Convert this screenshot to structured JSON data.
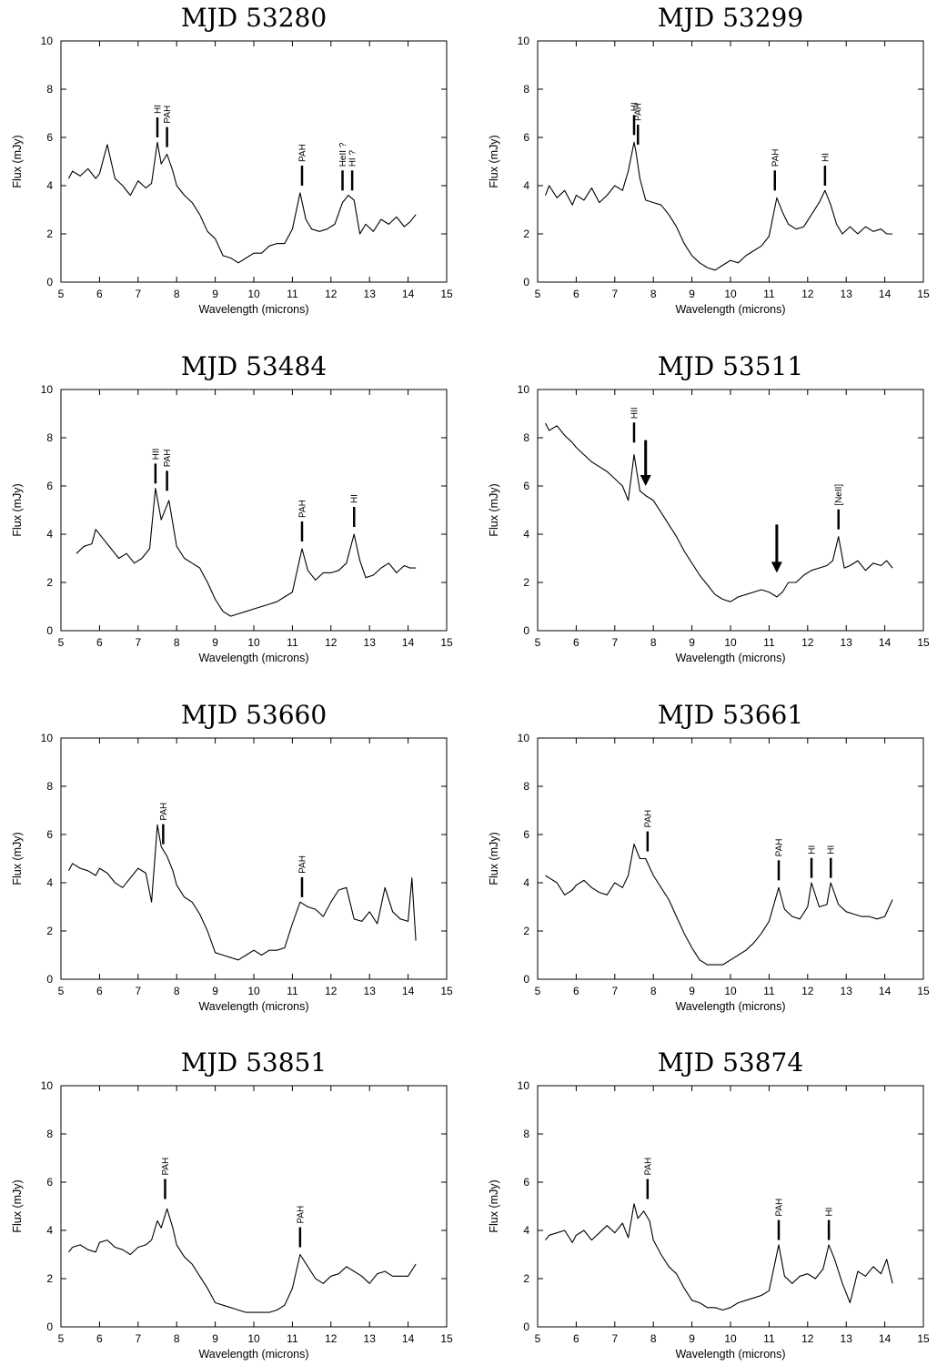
{
  "figure": {
    "xlabel": "Wavelength (microns)",
    "ylabel": "Flux (mJy)",
    "xlim": [
      5,
      15
    ],
    "ylim": [
      0,
      10
    ],
    "xticks": [
      5,
      6,
      7,
      8,
      9,
      10,
      11,
      12,
      13,
      14,
      15
    ],
    "yticks": [
      0,
      2,
      4,
      6,
      8,
      10
    ],
    "line_color": "#000000"
  },
  "chart_data": [
    {
      "type": "line",
      "title": "MJD 53280",
      "xlabel": "Wavelength (microns)",
      "ylabel": "Flux (mJy)",
      "xlim": [
        5,
        15
      ],
      "ylim": [
        0,
        10
      ],
      "series": [
        {
          "x": [
            5.2,
            5.3,
            5.5,
            5.7,
            5.9,
            6.0,
            6.2,
            6.4,
            6.6,
            6.8,
            7.0,
            7.2,
            7.35,
            7.5,
            7.6,
            7.75,
            7.9,
            8.0,
            8.2,
            8.4,
            8.6,
            8.8,
            9.0,
            9.2,
            9.4,
            9.6,
            9.8,
            10.0,
            10.2,
            10.4,
            10.6,
            10.8,
            11.0,
            11.2,
            11.35,
            11.5,
            11.7,
            11.9,
            12.1,
            12.3,
            12.45,
            12.6,
            12.75,
            12.9,
            13.1,
            13.3,
            13.5,
            13.7,
            13.9,
            14.05,
            14.2
          ],
          "y": [
            4.3,
            4.6,
            4.4,
            4.7,
            4.3,
            4.5,
            5.7,
            4.3,
            4.0,
            3.6,
            4.2,
            3.9,
            4.1,
            5.8,
            4.9,
            5.3,
            4.6,
            4.0,
            3.6,
            3.3,
            2.8,
            2.1,
            1.8,
            1.1,
            1.0,
            0.8,
            1.0,
            1.2,
            1.2,
            1.5,
            1.6,
            1.6,
            2.2,
            3.7,
            2.6,
            2.2,
            2.1,
            2.2,
            2.4,
            3.3,
            3.6,
            3.4,
            2.0,
            2.4,
            2.1,
            2.6,
            2.4,
            2.7,
            2.3,
            2.5,
            2.8
          ]
        }
      ],
      "annotations": [
        {
          "label": "HI",
          "x": 7.5,
          "y": 6.0
        },
        {
          "label": "PAH",
          "x": 7.75,
          "y": 5.6
        },
        {
          "label": "PAH",
          "x": 11.25,
          "y": 4.0
        },
        {
          "label": "HeII ?",
          "x": 12.3,
          "y": 3.8
        },
        {
          "label": "HI ?",
          "x": 12.55,
          "y": 3.8
        }
      ]
    },
    {
      "type": "line",
      "title": "MJD 53299",
      "xlabel": "Wavelength (microns)",
      "ylabel": "Flux (mJy)",
      "xlim": [
        5,
        15
      ],
      "ylim": [
        0,
        10
      ],
      "series": [
        {
          "x": [
            5.2,
            5.3,
            5.5,
            5.7,
            5.9,
            6.0,
            6.2,
            6.4,
            6.6,
            6.8,
            7.0,
            7.2,
            7.35,
            7.5,
            7.55,
            7.65,
            7.8,
            8.0,
            8.2,
            8.4,
            8.6,
            8.8,
            9.0,
            9.2,
            9.4,
            9.6,
            9.8,
            10.0,
            10.2,
            10.4,
            10.6,
            10.8,
            11.0,
            11.2,
            11.35,
            11.5,
            11.7,
            11.9,
            12.1,
            12.3,
            12.45,
            12.6,
            12.75,
            12.9,
            13.1,
            13.3,
            13.5,
            13.7,
            13.9,
            14.05,
            14.2
          ],
          "y": [
            3.6,
            4.0,
            3.5,
            3.8,
            3.2,
            3.6,
            3.4,
            3.9,
            3.3,
            3.6,
            4.0,
            3.8,
            4.6,
            5.8,
            5.4,
            4.3,
            3.4,
            3.3,
            3.2,
            2.8,
            2.3,
            1.6,
            1.1,
            0.8,
            0.6,
            0.5,
            0.7,
            0.9,
            0.8,
            1.1,
            1.3,
            1.5,
            1.9,
            3.5,
            2.9,
            2.4,
            2.2,
            2.3,
            2.8,
            3.3,
            3.8,
            3.2,
            2.4,
            2.0,
            2.3,
            2.0,
            2.3,
            2.1,
            2.2,
            2.0,
            2.0
          ]
        }
      ],
      "annotations": [
        {
          "label": "HI",
          "x": 7.5,
          "y": 6.1
        },
        {
          "label": "PAH",
          "x": 7.6,
          "y": 5.7
        },
        {
          "label": "PAH",
          "x": 11.15,
          "y": 3.8
        },
        {
          "label": "HI",
          "x": 12.45,
          "y": 4.0
        }
      ]
    },
    {
      "type": "line",
      "title": "MJD 53484",
      "xlabel": "Wavelength (microns)",
      "ylabel": "Flux (mJy)",
      "xlim": [
        5,
        15
      ],
      "ylim": [
        0,
        10
      ],
      "series": [
        {
          "x": [
            5.4,
            5.6,
            5.8,
            5.9,
            6.1,
            6.3,
            6.5,
            6.7,
            6.9,
            7.1,
            7.3,
            7.45,
            7.6,
            7.8,
            8.0,
            8.2,
            8.4,
            8.6,
            8.8,
            9.0,
            9.2,
            9.4,
            9.6,
            9.8,
            10.0,
            10.2,
            10.4,
            10.6,
            10.8,
            11.0,
            11.25,
            11.4,
            11.6,
            11.8,
            12.0,
            12.2,
            12.4,
            12.6,
            12.75,
            12.9,
            13.1,
            13.3,
            13.5,
            13.7,
            13.9,
            14.05,
            14.2
          ],
          "y": [
            3.2,
            3.5,
            3.6,
            4.2,
            3.8,
            3.4,
            3.0,
            3.2,
            2.8,
            3.0,
            3.4,
            5.9,
            4.6,
            5.4,
            3.5,
            3.0,
            2.8,
            2.6,
            2.0,
            1.3,
            0.8,
            0.6,
            0.7,
            0.8,
            0.9,
            1.0,
            1.1,
            1.2,
            1.4,
            1.6,
            3.4,
            2.5,
            2.1,
            2.4,
            2.4,
            2.5,
            2.8,
            4.0,
            2.9,
            2.2,
            2.3,
            2.6,
            2.8,
            2.4,
            2.7,
            2.6,
            2.6
          ]
        }
      ],
      "annotations": [
        {
          "label": "HII",
          "x": 7.45,
          "y": 6.1
        },
        {
          "label": "PAH",
          "x": 7.75,
          "y": 5.8
        },
        {
          "label": "PAH",
          "x": 11.25,
          "y": 3.7
        },
        {
          "label": "HI",
          "x": 12.6,
          "y": 4.3
        }
      ]
    },
    {
      "type": "line",
      "title": "MJD 53511",
      "xlabel": "Wavelength (microns)",
      "ylabel": "Flux (mJy)",
      "xlim": [
        5,
        15
      ],
      "ylim": [
        0,
        10
      ],
      "series": [
        {
          "x": [
            5.2,
            5.3,
            5.5,
            5.7,
            5.9,
            6.0,
            6.2,
            6.4,
            6.6,
            6.8,
            7.0,
            7.2,
            7.35,
            7.5,
            7.65,
            7.8,
            8.0,
            8.2,
            8.4,
            8.6,
            8.8,
            9.0,
            9.2,
            9.4,
            9.6,
            9.8,
            10.0,
            10.2,
            10.4,
            10.6,
            10.8,
            11.0,
            11.2,
            11.35,
            11.5,
            11.7,
            11.9,
            12.1,
            12.3,
            12.5,
            12.65,
            12.8,
            12.95,
            13.1,
            13.3,
            13.5,
            13.7,
            13.9,
            14.05,
            14.2
          ],
          "y": [
            8.6,
            8.3,
            8.5,
            8.1,
            7.8,
            7.6,
            7.3,
            7.0,
            6.8,
            6.6,
            6.3,
            6.0,
            5.4,
            7.3,
            5.8,
            5.6,
            5.4,
            4.9,
            4.4,
            3.9,
            3.3,
            2.8,
            2.3,
            1.9,
            1.5,
            1.3,
            1.2,
            1.4,
            1.5,
            1.6,
            1.7,
            1.6,
            1.4,
            1.6,
            2.0,
            2.0,
            2.3,
            2.5,
            2.6,
            2.7,
            2.9,
            3.9,
            2.6,
            2.7,
            2.9,
            2.5,
            2.8,
            2.7,
            2.9,
            2.6
          ]
        }
      ],
      "annotations": [
        {
          "label": "HII",
          "x": 7.5,
          "y": 7.8
        },
        {
          "label": "[NeII]",
          "x": 12.8,
          "y": 4.2
        }
      ],
      "arrows": [
        {
          "x": 7.8,
          "y_from": 7.9,
          "y_to": 6.0
        },
        {
          "x": 11.2,
          "y_from": 4.4,
          "y_to": 2.4
        }
      ]
    },
    {
      "type": "line",
      "title": "MJD 53660",
      "xlabel": "Wavelength (microns)",
      "ylabel": "Flux (mJy)",
      "xlim": [
        5,
        15
      ],
      "ylim": [
        0,
        10
      ],
      "series": [
        {
          "x": [
            5.2,
            5.3,
            5.5,
            5.7,
            5.9,
            6.0,
            6.2,
            6.4,
            6.6,
            6.8,
            7.0,
            7.2,
            7.35,
            7.5,
            7.6,
            7.75,
            7.9,
            8.0,
            8.2,
            8.4,
            8.6,
            8.8,
            9.0,
            9.2,
            9.4,
            9.6,
            9.8,
            10.0,
            10.2,
            10.4,
            10.6,
            10.8,
            11.0,
            11.2,
            11.4,
            11.6,
            11.8,
            12.0,
            12.2,
            12.4,
            12.6,
            12.8,
            13.0,
            13.2,
            13.4,
            13.6,
            13.8,
            14.0,
            14.1,
            14.2
          ],
          "y": [
            4.5,
            4.8,
            4.6,
            4.5,
            4.3,
            4.6,
            4.4,
            4.0,
            3.8,
            4.2,
            4.6,
            4.4,
            3.2,
            6.4,
            5.5,
            5.1,
            4.5,
            3.9,
            3.4,
            3.2,
            2.7,
            2.0,
            1.1,
            1.0,
            0.9,
            0.8,
            1.0,
            1.2,
            1.0,
            1.2,
            1.2,
            1.3,
            2.3,
            3.2,
            3.0,
            2.9,
            2.6,
            3.2,
            3.7,
            3.8,
            2.5,
            2.4,
            2.8,
            2.3,
            3.8,
            2.8,
            2.5,
            2.4,
            4.2,
            1.6
          ]
        }
      ],
      "annotations": [
        {
          "label": "PAH",
          "x": 7.65,
          "y": 5.6
        },
        {
          "label": "PAH",
          "x": 11.25,
          "y": 3.4
        }
      ]
    },
    {
      "type": "line",
      "title": "MJD 53661",
      "xlabel": "Wavelength (microns)",
      "ylabel": "Flux (mJy)",
      "xlim": [
        5,
        15
      ],
      "ylim": [
        0,
        10
      ],
      "series": [
        {
          "x": [
            5.2,
            5.3,
            5.5,
            5.7,
            5.9,
            6.0,
            6.2,
            6.4,
            6.6,
            6.8,
            7.0,
            7.2,
            7.35,
            7.5,
            7.65,
            7.8,
            8.0,
            8.2,
            8.4,
            8.6,
            8.8,
            9.0,
            9.2,
            9.4,
            9.6,
            9.8,
            10.0,
            10.2,
            10.4,
            10.6,
            10.8,
            11.0,
            11.25,
            11.4,
            11.6,
            11.8,
            12.0,
            12.1,
            12.3,
            12.5,
            12.6,
            12.8,
            13.0,
            13.2,
            13.4,
            13.6,
            13.8,
            14.0,
            14.2
          ],
          "y": [
            4.3,
            4.2,
            4.0,
            3.5,
            3.7,
            3.9,
            4.1,
            3.8,
            3.6,
            3.5,
            4.0,
            3.8,
            4.3,
            5.6,
            5.0,
            5.0,
            4.3,
            3.8,
            3.3,
            2.6,
            1.9,
            1.3,
            0.8,
            0.6,
            0.6,
            0.6,
            0.8,
            1.0,
            1.2,
            1.5,
            1.9,
            2.4,
            3.8,
            2.9,
            2.6,
            2.5,
            3.0,
            4.0,
            3.0,
            3.1,
            4.0,
            3.1,
            2.8,
            2.7,
            2.6,
            2.6,
            2.5,
            2.6,
            3.3
          ]
        }
      ],
      "annotations": [
        {
          "label": "PAH",
          "x": 7.85,
          "y": 5.3
        },
        {
          "label": "PAH",
          "x": 11.25,
          "y": 4.1
        },
        {
          "label": "HI",
          "x": 12.1,
          "y": 4.2
        },
        {
          "label": "HI",
          "x": 12.6,
          "y": 4.2
        }
      ]
    },
    {
      "type": "line",
      "title": "MJD 53851",
      "xlabel": "Wavelength (microns)",
      "ylabel": "Flux (mJy)",
      "xlim": [
        5,
        15
      ],
      "ylim": [
        0,
        10
      ],
      "series": [
        {
          "x": [
            5.2,
            5.3,
            5.5,
            5.7,
            5.9,
            6.0,
            6.2,
            6.4,
            6.6,
            6.8,
            7.0,
            7.2,
            7.35,
            7.5,
            7.6,
            7.75,
            7.9,
            8.0,
            8.2,
            8.4,
            8.6,
            8.8,
            9.0,
            9.2,
            9.4,
            9.6,
            9.8,
            10.0,
            10.2,
            10.4,
            10.6,
            10.8,
            11.0,
            11.2,
            11.4,
            11.6,
            11.8,
            12.0,
            12.2,
            12.4,
            12.6,
            12.8,
            13.0,
            13.2,
            13.4,
            13.6,
            13.8,
            14.0,
            14.2
          ],
          "y": [
            3.1,
            3.3,
            3.4,
            3.2,
            3.1,
            3.5,
            3.6,
            3.3,
            3.2,
            3.0,
            3.3,
            3.4,
            3.6,
            4.4,
            4.1,
            4.9,
            4.1,
            3.4,
            2.9,
            2.6,
            2.1,
            1.6,
            1.0,
            0.9,
            0.8,
            0.7,
            0.6,
            0.6,
            0.6,
            0.6,
            0.7,
            0.9,
            1.6,
            3.0,
            2.5,
            2.0,
            1.8,
            2.1,
            2.2,
            2.5,
            2.3,
            2.1,
            1.8,
            2.2,
            2.3,
            2.1,
            2.1,
            2.1,
            2.6
          ]
        }
      ],
      "annotations": [
        {
          "label": "PAH",
          "x": 7.7,
          "y": 5.3
        },
        {
          "label": "PAH",
          "x": 11.2,
          "y": 3.3
        }
      ]
    },
    {
      "type": "line",
      "title": "MJD 53874",
      "xlabel": "Wavelength (microns)",
      "ylabel": "Flux (mJy)",
      "xlim": [
        5,
        15
      ],
      "ylim": [
        0,
        10
      ],
      "series": [
        {
          "x": [
            5.2,
            5.3,
            5.5,
            5.7,
            5.9,
            6.0,
            6.2,
            6.4,
            6.6,
            6.8,
            7.0,
            7.2,
            7.35,
            7.5,
            7.6,
            7.75,
            7.9,
            8.0,
            8.2,
            8.4,
            8.6,
            8.8,
            9.0,
            9.2,
            9.4,
            9.6,
            9.8,
            10.0,
            10.2,
            10.4,
            10.6,
            10.8,
            11.0,
            11.25,
            11.4,
            11.6,
            11.8,
            12.0,
            12.2,
            12.4,
            12.55,
            12.7,
            12.9,
            13.1,
            13.3,
            13.5,
            13.7,
            13.9,
            14.05,
            14.2
          ],
          "y": [
            3.6,
            3.8,
            3.9,
            4.0,
            3.5,
            3.8,
            4.0,
            3.6,
            3.9,
            4.2,
            3.9,
            4.3,
            3.7,
            5.1,
            4.5,
            4.8,
            4.4,
            3.6,
            3.0,
            2.5,
            2.2,
            1.6,
            1.1,
            1.0,
            0.8,
            0.8,
            0.7,
            0.8,
            1.0,
            1.1,
            1.2,
            1.3,
            1.5,
            3.4,
            2.1,
            1.8,
            2.1,
            2.2,
            2.0,
            2.4,
            3.4,
            2.8,
            1.8,
            1.0,
            2.3,
            2.1,
            2.5,
            2.2,
            2.8,
            1.8
          ]
        }
      ],
      "annotations": [
        {
          "label": "PAH",
          "x": 7.85,
          "y": 5.3
        },
        {
          "label": "PAH",
          "x": 11.25,
          "y": 3.6
        },
        {
          "label": "HI",
          "x": 12.55,
          "y": 3.6
        }
      ]
    }
  ]
}
